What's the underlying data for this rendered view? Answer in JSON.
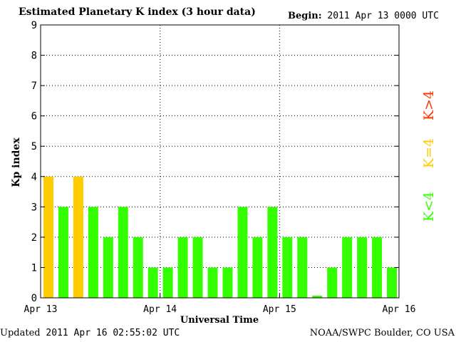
{
  "header": {
    "title": "Estimated Planetary K index (3 hour data)",
    "begin_label": "Begin:",
    "begin_value": "2011 Apr 13 0000 UTC"
  },
  "footer": {
    "updated_label": "Updated",
    "updated_value": "2011 Apr 16 02:55:02 UTC",
    "source": "NOAA/SWPC Boulder, CO USA"
  },
  "legend": {
    "above": "K>4",
    "equal": "K=4",
    "below": "K<4"
  },
  "colors": {
    "below": "#33ff00",
    "equal": "#ffcc00",
    "above": "#ff3300",
    "frame": "#000000",
    "grid": "#000000"
  },
  "chart_data": {
    "type": "bar",
    "title": "Estimated Planetary K index (3 hour data)",
    "xlabel": "Universal Time",
    "ylabel": "Kp index",
    "ylim": [
      0,
      9
    ],
    "yticks": [
      "0",
      "1",
      "2",
      "3",
      "4",
      "5",
      "6",
      "7",
      "8",
      "9"
    ],
    "xticks": [
      "Apr 13",
      "Apr 14",
      "Apr 15",
      "Apr 16"
    ],
    "grid": true,
    "bins_per_day": 8,
    "values": [
      4,
      3,
      4,
      3,
      2,
      3,
      2,
      1,
      1,
      2,
      2,
      1,
      1,
      3,
      2,
      3,
      2,
      2,
      0.07,
      1,
      2,
      2,
      2,
      1
    ]
  }
}
